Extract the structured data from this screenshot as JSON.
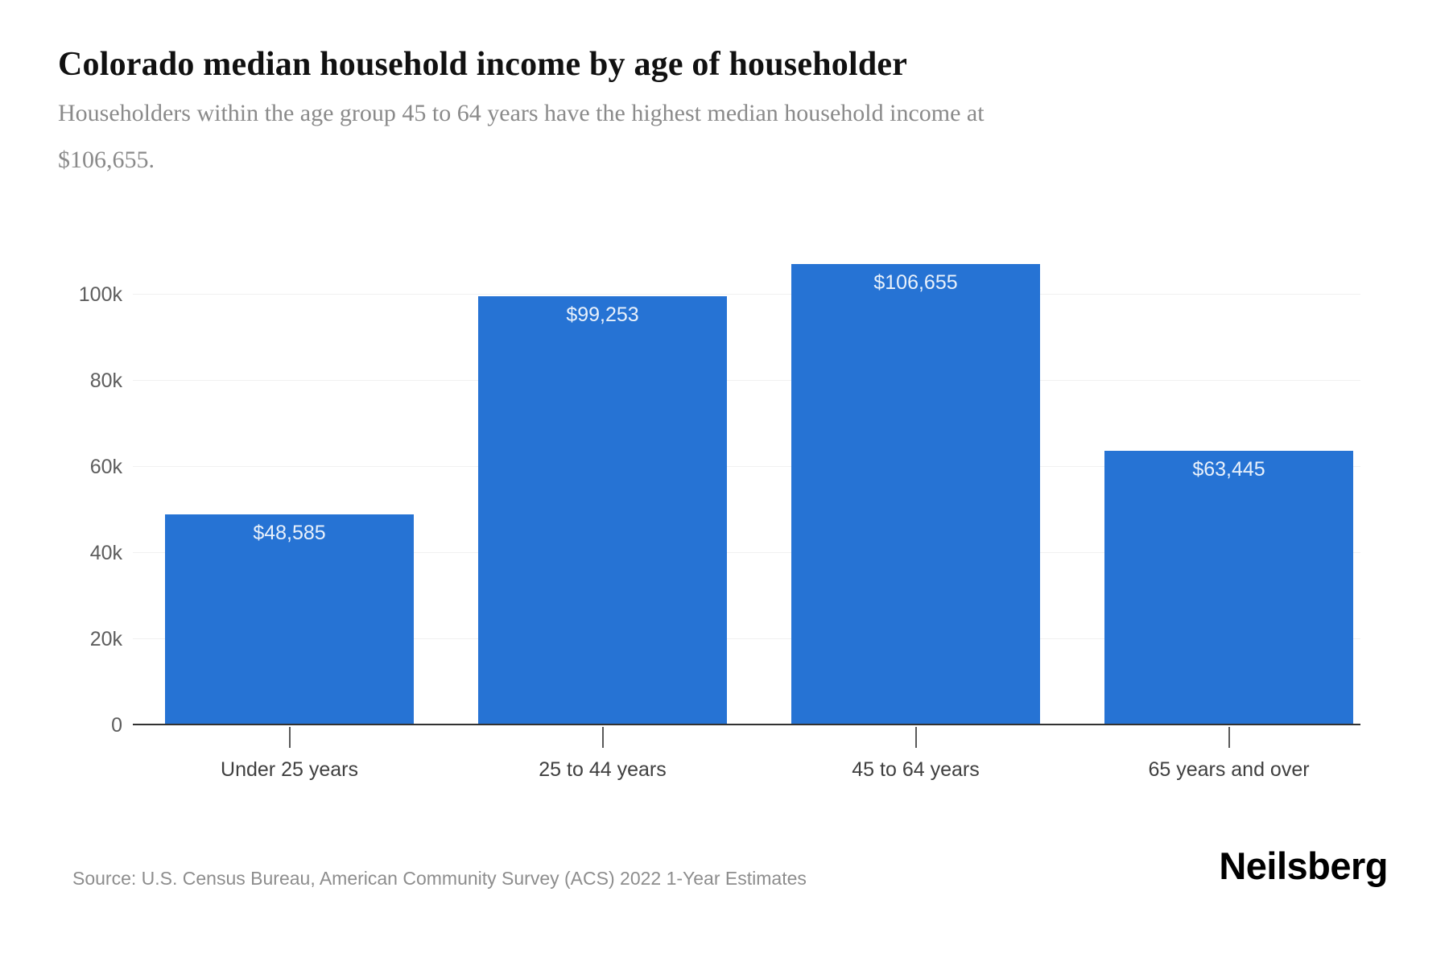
{
  "header": {
    "title": "Colorado median household income by age of householder",
    "subtitle": "Householders within the age group 45 to 64 years have the highest median household income at $106,655.",
    "subtitle_lines": [
      "Householders within the age group 45 to 64 years have the highest median household income at",
      "$106,655."
    ]
  },
  "chart_data": {
    "type": "bar",
    "title": "Colorado median household income by age of householder",
    "categories": [
      "Under 25 years",
      "25 to 44 years",
      "45 to 64 years",
      "65 years and over"
    ],
    "values": [
      48585,
      99253,
      106655,
      63445
    ],
    "value_labels": [
      "$48,585",
      "$99,253",
      "$106,655",
      "$63,445"
    ],
    "xlabel": "",
    "ylabel": "",
    "ylim": [
      0,
      116000
    ],
    "yticks": [
      {
        "label": "0",
        "value": 0
      },
      {
        "label": "20k",
        "value": 20000
      },
      {
        "label": "40k",
        "value": 40000
      },
      {
        "label": "60k",
        "value": 60000
      },
      {
        "label": "80k",
        "value": 80000
      },
      {
        "label": "100k",
        "value": 100000
      }
    ],
    "grid": true,
    "legend": false
  },
  "colors": {
    "bar": "#2673d4",
    "bar_label": "#e9f1fb",
    "grid": "#f1f1f1",
    "axis": "#323232",
    "title_text": "#111111",
    "muted_text": "#8a8a8a"
  },
  "footer": {
    "source": "Source: U.S. Census Bureau, American Community Survey (ACS) 2022 1-Year Estimates",
    "brand": "Neilsberg"
  }
}
